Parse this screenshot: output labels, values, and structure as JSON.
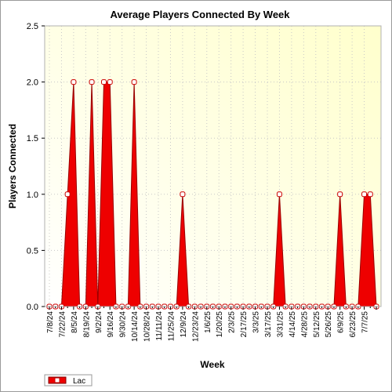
{
  "chart_data": {
    "type": "area",
    "title": "Average Players Connected By Week",
    "xlabel": "Week",
    "ylabel": "Players Connected",
    "ylim": [
      0,
      2.5
    ],
    "yticks": [
      "0.0",
      "0.5",
      "1.0",
      "1.5",
      "2.0",
      "2.5"
    ],
    "xtick_labels": [
      "7/8/24",
      "7/22/24",
      "8/5/24",
      "8/19/24",
      "9/2/24",
      "9/16/24",
      "9/30/24",
      "10/14/24",
      "10/28/24",
      "11/11/24",
      "11/25/24",
      "12/9/24",
      "12/23/24",
      "1/6/25",
      "1/20/25",
      "2/3/25",
      "2/17/25",
      "3/3/25",
      "3/17/25",
      "3/31/25",
      "4/14/25",
      "4/28/25",
      "5/12/25",
      "5/26/25",
      "6/9/25",
      "6/23/25",
      "7/7/25"
    ],
    "grid": true,
    "legend_position": "bottom-left",
    "series": [
      {
        "name": "Lac",
        "color": "#ee0000",
        "values": [
          0,
          0,
          0,
          1,
          2,
          0,
          0,
          2,
          0,
          2,
          2,
          0,
          0,
          0,
          2,
          0,
          0,
          0,
          0,
          0,
          0,
          0,
          1,
          0,
          0,
          0,
          0,
          0,
          0,
          0,
          0,
          0,
          0,
          0,
          0,
          0,
          0,
          0,
          1,
          0,
          0,
          0,
          0,
          0,
          0,
          0,
          0,
          0,
          1,
          0,
          0,
          0,
          1,
          1,
          0
        ]
      }
    ]
  }
}
